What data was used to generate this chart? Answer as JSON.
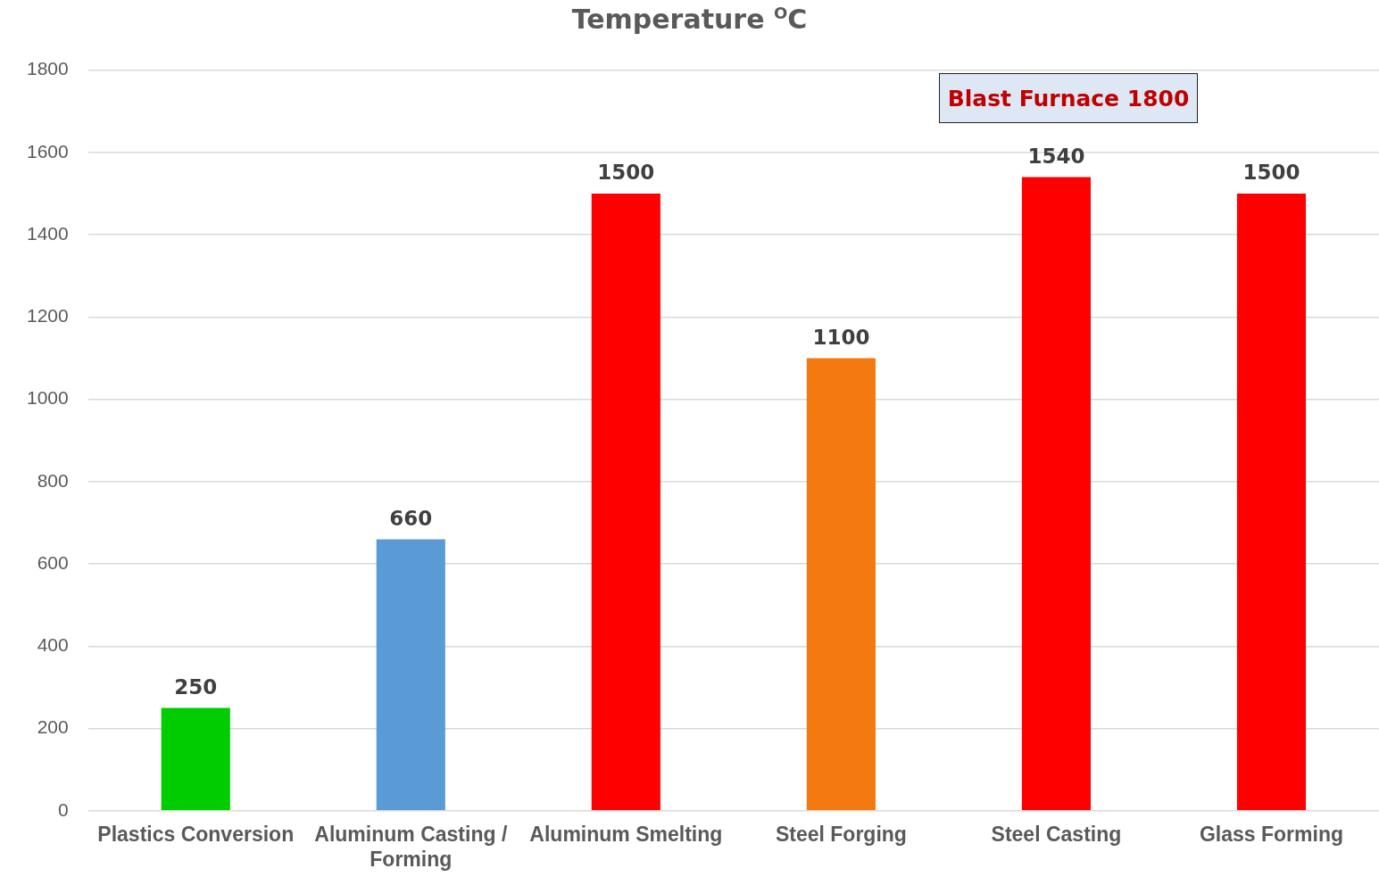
{
  "chart_data": {
    "type": "bar",
    "title": "Temperature $^{O}$C",
    "categories": [
      "Plastics Conversion",
      "Aluminum Casting / Forming",
      "Aluminum Smelting",
      "Steel Forging",
      "Steel Casting",
      "Glass Forming"
    ],
    "values": [
      250,
      660,
      1500,
      1100,
      1540,
      1500
    ],
    "colors": [
      "#00cc00",
      "#5b9bd5",
      "#ff0000",
      "#f47910",
      "#ff0000",
      "#ff0000"
    ],
    "ylim": [
      0,
      1800
    ],
    "yticks": [
      0,
      200,
      400,
      600,
      800,
      1000,
      1200,
      1400,
      1600,
      1800
    ],
    "grid": "y",
    "data_labels": true,
    "annotations": [
      "Blast Furnace 1800"
    ]
  }
}
